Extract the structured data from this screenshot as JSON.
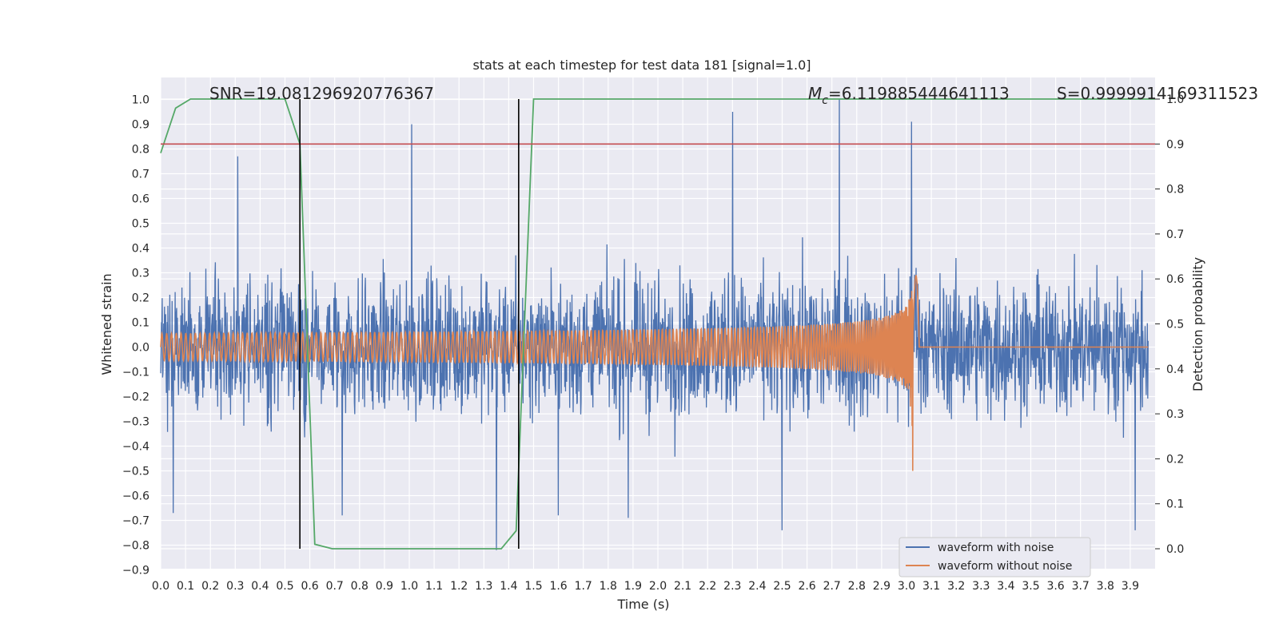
{
  "chart_data": {
    "type": "line",
    "title": "stats at each timestep for test data 181 [signal=1.0]",
    "xlabel": "Time (s)",
    "ylabel_left": "Whitened strain",
    "ylabel_right": "Detection probability",
    "xlim": [
      0.0,
      4.0
    ],
    "ylim_left": [
      -0.9,
      1.1
    ],
    "ylim_right": [
      -0.05,
      1.0
    ],
    "x_ticks": [
      "0.0",
      "0.1",
      "0.2",
      "0.3",
      "0.4",
      "0.5",
      "0.6",
      "0.7",
      "0.8",
      "0.9",
      "1.0",
      "1.1",
      "1.2",
      "1.3",
      "1.4",
      "1.5",
      "1.6",
      "1.7",
      "1.8",
      "1.9",
      "2.0",
      "2.1",
      "2.2",
      "2.3",
      "2.4",
      "2.5",
      "2.6",
      "2.7",
      "2.8",
      "2.9",
      "3.0",
      "3.1",
      "3.2",
      "3.3",
      "3.4",
      "3.5",
      "3.6",
      "3.7",
      "3.8",
      "3.9"
    ],
    "y_ticks_left": [
      "1.0",
      "0.9",
      "0.8",
      "0.7",
      "0.6",
      "0.5",
      "0.4",
      "0.3",
      "0.2",
      "0.1",
      "0.0",
      "−0.1",
      "−0.2",
      "−0.3",
      "−0.4",
      "−0.5",
      "−0.6",
      "−0.7",
      "−0.8",
      "−0.9"
    ],
    "y_ticks_right": [
      "1.0",
      "0.9",
      "0.8",
      "0.7",
      "0.6",
      "0.5",
      "0.4",
      "0.3",
      "0.2",
      "0.1",
      "0.0"
    ],
    "annotations": {
      "snr": "SNR=19.081296920776367",
      "mc_symbol": "M",
      "mc_sub": "c",
      "mc_value": "=6.119885444641113",
      "s": "S=0.9999914169311523"
    },
    "legend": {
      "placement": "lower-right",
      "entries": [
        {
          "label": "waveform with noise",
          "color": "#4c72b0"
        },
        {
          "label": "waveform without noise",
          "color": "#dd8452"
        }
      ]
    },
    "series": [
      {
        "name": "waveform with noise",
        "axis": "left",
        "color": "#4c72b0",
        "noise_envelope": 0.45,
        "peaks": [
          [
            0.31,
            0.77
          ],
          [
            1.01,
            0.9
          ],
          [
            2.3,
            0.95
          ],
          [
            2.73,
            1.0
          ],
          [
            3.02,
            0.91
          ],
          [
            1.35,
            -0.82
          ],
          [
            0.05,
            -0.67
          ],
          [
            2.5,
            -0.74
          ],
          [
            3.92,
            -0.74
          ],
          [
            1.6,
            -0.68
          ],
          [
            0.73,
            -0.68
          ],
          [
            1.88,
            -0.69
          ]
        ]
      },
      {
        "name": "waveform without noise",
        "axis": "left",
        "color": "#dd8452",
        "chirp": {
          "start_amplitude": 0.055,
          "peak_amplitude": 0.37,
          "min_value": -0.5,
          "merger_time": 3.03
        }
      },
      {
        "name": "detection probability",
        "axis": "right",
        "color": "#55a868",
        "x": [
          0.0,
          0.06,
          0.12,
          0.5,
          0.56,
          0.62,
          0.69,
          1.37,
          1.43,
          1.5,
          4.0
        ],
        "y": [
          0.88,
          0.98,
          1.0,
          1.0,
          0.9,
          0.01,
          0.0,
          0.0,
          0.04,
          1.0,
          1.0
        ]
      }
    ],
    "threshold": {
      "axis": "right",
      "y": 0.9,
      "color": "#c44e52"
    },
    "vertical_markers": {
      "x": [
        0.56,
        1.44
      ],
      "range_right": [
        0.0,
        1.0
      ],
      "color": "#000000"
    },
    "grid": true,
    "background": "#eaeaf2"
  }
}
